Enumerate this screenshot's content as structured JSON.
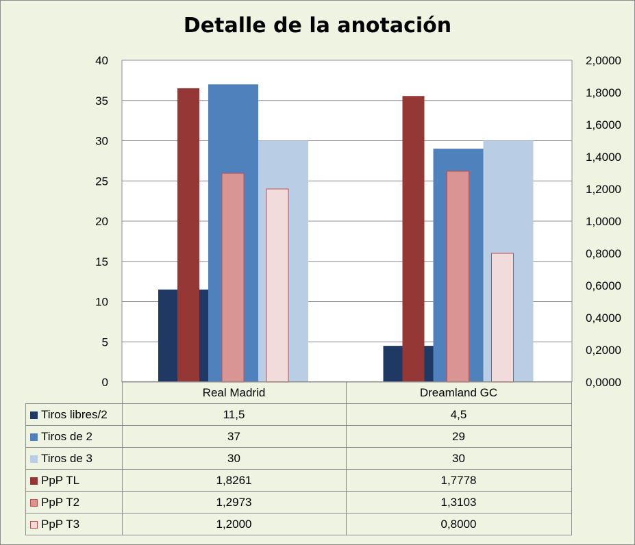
{
  "chart_data": {
    "type": "bar",
    "title": "Detalle de la anotación",
    "categories": [
      "Real Madrid",
      "Dreamland GC"
    ],
    "series": [
      {
        "name": "Tiros libres/2",
        "axis": "left",
        "color": "#1f3864",
        "values": [
          11.5,
          4.5
        ],
        "display": [
          "11,5",
          "4,5"
        ]
      },
      {
        "name": "Tiros de 2",
        "axis": "left",
        "color": "#4f81bd",
        "values": [
          37,
          29
        ],
        "display": [
          "37",
          "29"
        ]
      },
      {
        "name": "Tiros de 3",
        "axis": "left",
        "color": "#b9cde5",
        "values": [
          30,
          30
        ],
        "display": [
          "30",
          "30"
        ]
      },
      {
        "name": "PpP TL",
        "axis": "right",
        "color": "#953735",
        "values": [
          1.8261,
          1.7778
        ],
        "display": [
          "1,8261",
          "1,7778"
        ]
      },
      {
        "name": "PpP T2",
        "axis": "right",
        "color": "#d99594",
        "values": [
          1.2973,
          1.3103
        ],
        "display": [
          "1,2973",
          "1,3103"
        ]
      },
      {
        "name": "PpP T3",
        "axis": "right",
        "color": "#f2dcdb",
        "values": [
          1.2,
          0.8
        ],
        "display": [
          "1,2000",
          "0,8000"
        ]
      }
    ],
    "y_left": {
      "min": 0,
      "max": 40,
      "step": 5,
      "tick_labels": [
        "0",
        "5",
        "10",
        "15",
        "20",
        "25",
        "30",
        "35",
        "40"
      ]
    },
    "y_right": {
      "min": 0,
      "max": 2,
      "step": 0.2,
      "tick_labels": [
        "0,0000",
        "0,2000",
        "0,4000",
        "0,6000",
        "0,8000",
        "1,0000",
        "1,2000",
        "1,4000",
        "1,6000",
        "1,8000",
        "2,0000"
      ]
    },
    "grid": true,
    "legend": "data-table"
  }
}
